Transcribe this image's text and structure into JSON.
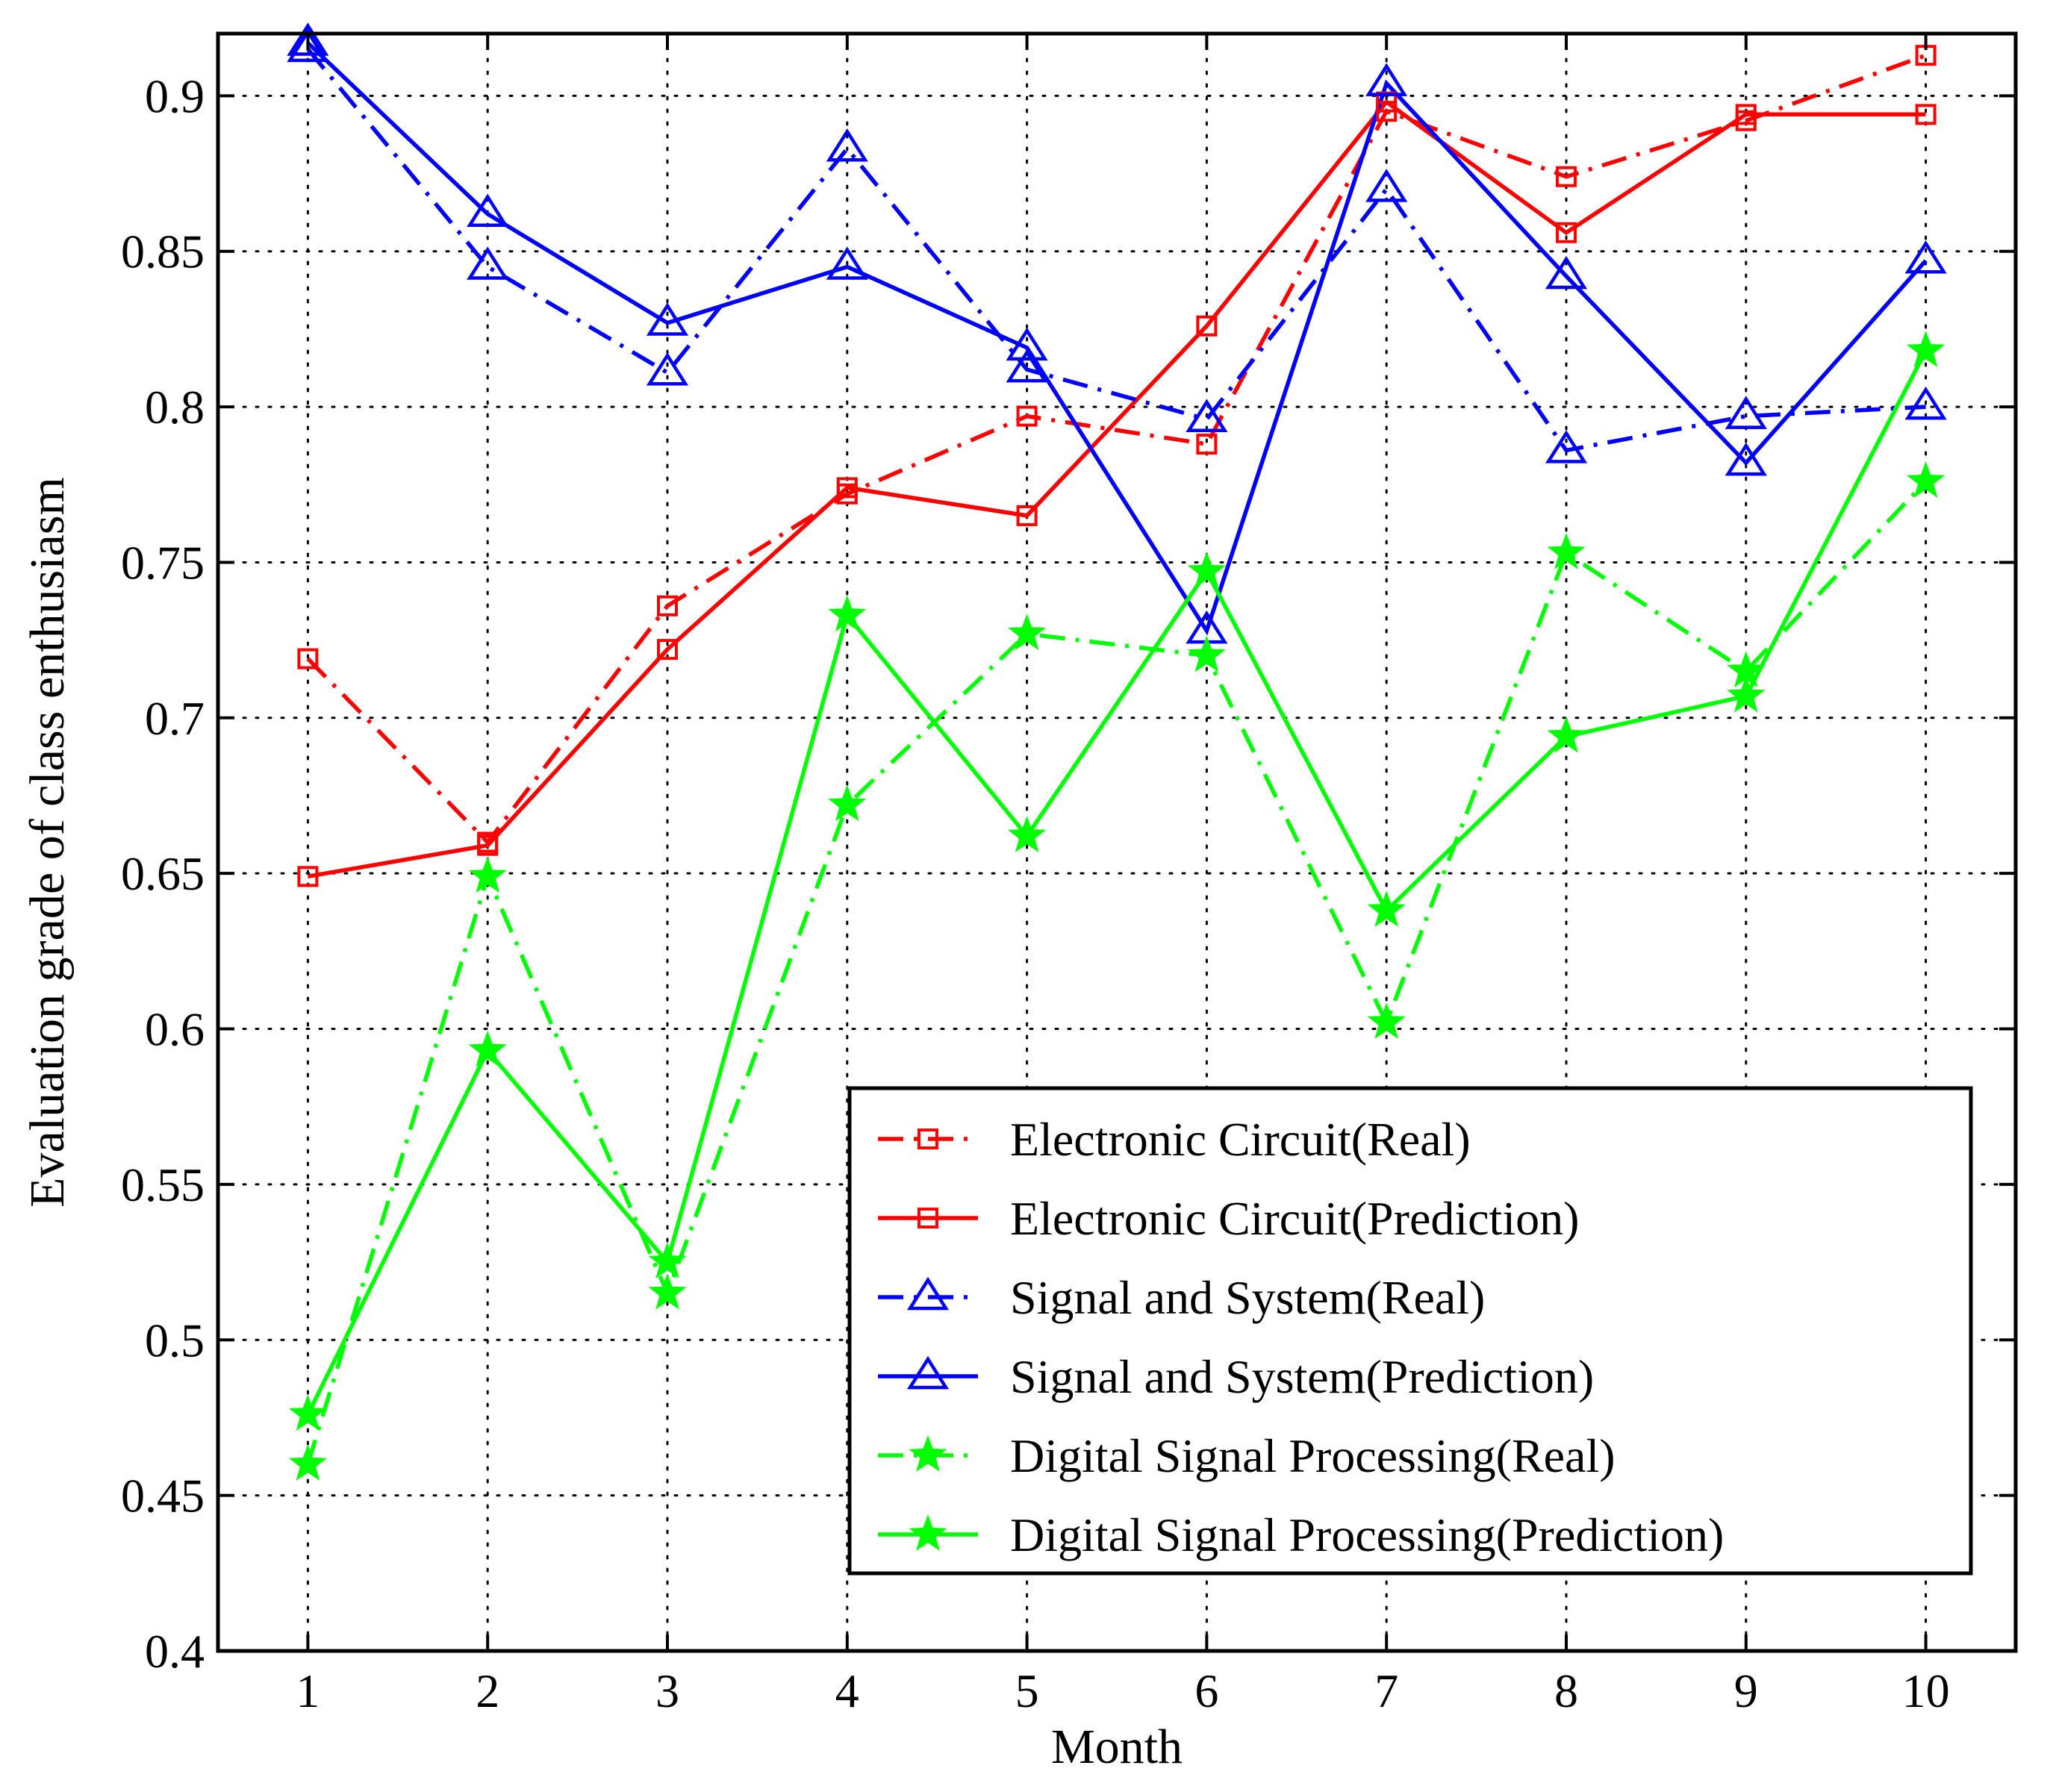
{
  "chart_data": {
    "type": "line",
    "title": "",
    "xlabel": "Month",
    "ylabel": "Evaluation grade of class enthusiasm",
    "x": [
      1,
      2,
      3,
      4,
      5,
      6,
      7,
      8,
      9,
      10
    ],
    "xlim": [
      0.5,
      10.5
    ],
    "ylim": [
      0.4,
      0.92
    ],
    "yticks": [
      0.4,
      0.45,
      0.5,
      0.55,
      0.6,
      0.65,
      0.7,
      0.75,
      0.8,
      0.85,
      0.9
    ],
    "ytick_labels": [
      "0.4",
      "0.45",
      "0.5",
      "0.55",
      "0.6",
      "0.65",
      "0.7",
      "0.75",
      "0.8",
      "0.85",
      "0.9"
    ],
    "xtick_labels": [
      "1",
      "2",
      "3",
      "4",
      "5",
      "6",
      "7",
      "8",
      "9",
      "10"
    ],
    "grid": true,
    "legend_position": "bottom-right",
    "series": [
      {
        "name": "Electronic Circuit(Real)",
        "color": "#ff0000",
        "line": "dashdot",
        "marker": "square",
        "values": [
          0.719,
          0.66,
          0.736,
          0.772,
          0.797,
          0.788,
          0.895,
          0.874,
          0.892,
          0.913
        ]
      },
      {
        "name": "Electronic Circuit(Prediction)",
        "color": "#ff0000",
        "line": "solid",
        "marker": "square",
        "values": [
          0.649,
          0.659,
          0.722,
          0.774,
          0.765,
          0.826,
          0.898,
          0.856,
          0.894,
          0.894
        ]
      },
      {
        "name": "Signal and System(Real)",
        "color": "#0000ff",
        "line": "dashdot",
        "marker": "triangle",
        "values": [
          0.915,
          0.845,
          0.811,
          0.883,
          0.812,
          0.796,
          0.87,
          0.786,
          0.797,
          0.8
        ]
      },
      {
        "name": "Signal and System(Prediction)",
        "color": "#0000ff",
        "line": "solid",
        "marker": "triangle",
        "values": [
          0.917,
          0.862,
          0.827,
          0.845,
          0.819,
          0.728,
          0.904,
          0.842,
          0.782,
          0.847
        ]
      },
      {
        "name": "Digital Signal Processing(Real)",
        "color": "#00ff00",
        "line": "dashdot",
        "marker": "star",
        "values": [
          0.46,
          0.649,
          0.515,
          0.672,
          0.727,
          0.72,
          0.602,
          0.753,
          0.715,
          0.776
        ]
      },
      {
        "name": "Digital Signal Processing(Prediction)",
        "color": "#00ff00",
        "line": "solid",
        "marker": "star",
        "values": [
          0.476,
          0.593,
          0.525,
          0.733,
          0.662,
          0.747,
          0.638,
          0.694,
          0.707,
          0.818
        ]
      }
    ]
  }
}
